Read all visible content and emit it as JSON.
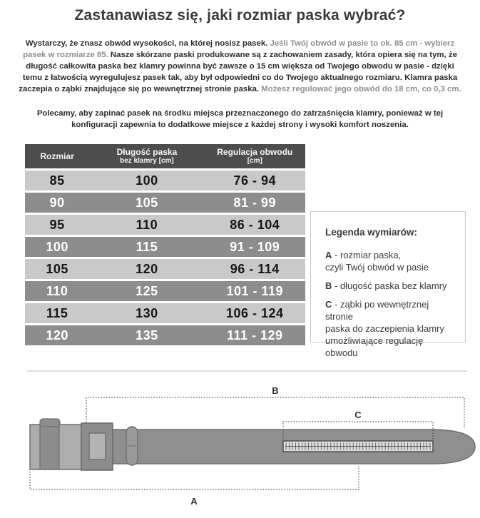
{
  "title": "Zastanawiasz się, jaki rozmiar paska wybrać?",
  "intro": {
    "segments": [
      {
        "text": "Wystarczy, że znasz obwód wysokości, na której nosisz pasek. ",
        "tone": "dark"
      },
      {
        "text": "Jeśli Twój obwód w pasie to ok. 85 cm - wybierz pasek w rozmiarze 85. ",
        "tone": "gray"
      },
      {
        "text": "Nasze skórzane paski produkowane są z zachowaniem zasady, która opiera się na tym, że długość całkowita paska bez klamry powinna być zawsze o 15 cm większa od Twojego obwodu w pasie - dzięki temu z łatwością wyregulujesz pasek tak, aby był odpowiedni co do Twojego aktualnego rozmiaru. Klamra paska zaczepia o ząbki znajdujące się po wewnętrznej stronie paska. ",
        "tone": "dark"
      },
      {
        "text": "Możesz regulować jego obwód do 18 cm, co 0,3 cm.",
        "tone": "gray"
      }
    ]
  },
  "recommendation": "Polecamy, aby zapinać pasek na środku miejsca przeznaczonego do zatrzaśnięcia klamry, ponieważ w tej konfiguracji zapewnia to dodatkowe miejsce z każdej strony i wysoki komfort noszenia.",
  "table": {
    "headers": [
      {
        "line1": "Rozmiar",
        "line2": ""
      },
      {
        "line1": "Długość paska",
        "line2": "bez klamry [cm]"
      },
      {
        "line1": "Regulacja obwodu",
        "line2": "[cm]"
      }
    ],
    "rows": [
      [
        "85",
        "100",
        "76 - 94"
      ],
      [
        "90",
        "105",
        "81 - 99"
      ],
      [
        "95",
        "110",
        "86 - 104"
      ],
      [
        "100",
        "115",
        "91 - 109"
      ],
      [
        "105",
        "120",
        "96 - 114"
      ],
      [
        "110",
        "125",
        "101 - 119"
      ],
      [
        "115",
        "130",
        "106 - 124"
      ],
      [
        "120",
        "135",
        "111 - 129"
      ]
    ]
  },
  "legend": {
    "title": "Legenda wymiarów:",
    "items": [
      {
        "letter": "A",
        "sep": " - ",
        "text": "rozmiar paska,\nczyli Twój obwód w pasie"
      },
      {
        "letter": "B",
        "sep": " - ",
        "text": "długość paska bez klamry"
      },
      {
        "letter": "C",
        "sep": " - ",
        "text": "ząbki po wewnętrznej stronie\npaska do zaczepienia klamry\numożliwiające regulację\nobwodu"
      }
    ]
  },
  "diagram": {
    "label_a": "A",
    "label_b": "B",
    "label_c": "C",
    "teeth_count": 46
  },
  "theme": {
    "table_header_bg": "#4d4d4d",
    "row_dark_bg": "#8d8d8d",
    "row_light_bg": "#c9c9c9",
    "text_dark": "#2d2d2d",
    "text_gray": "#8e8e8e",
    "belt_fill": "#8f8f8f",
    "divider": "#dedede"
  }
}
